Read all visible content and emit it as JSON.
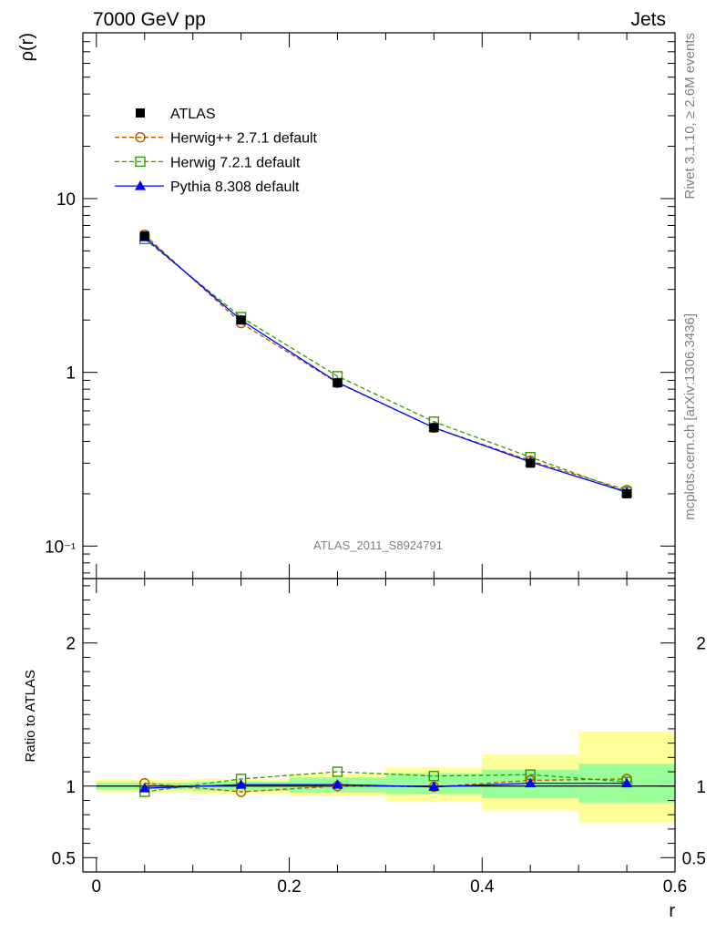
{
  "header": {
    "left_title": "7000 GeV pp",
    "right_title": "Jets"
  },
  "side_labels": {
    "rivet": "Rivet 3.1.10, ≥ 2.6M events",
    "mcplots": "mcplots.cern.ch [arXiv:1306.3436]"
  },
  "watermark": "ATLAS_2011_S8924791",
  "colors": {
    "atlas": "#000000",
    "herwigpp": "#b35900",
    "herwig7": "#339900",
    "pythia": "#0000ff",
    "band_inner": "#99ff99",
    "band_outer": "#ffff99"
  },
  "legend": [
    {
      "label": "ATLAS",
      "key": "atlas",
      "marker": "square-filled",
      "line": "none"
    },
    {
      "label": "Herwig++ 2.7.1 default",
      "key": "herwigpp",
      "marker": "circle-open",
      "line": "dashed"
    },
    {
      "label": "Herwig 7.2.1 default",
      "key": "herwig7",
      "marker": "square-open",
      "line": "dashed"
    },
    {
      "label": "Pythia 8.308 default",
      "key": "pythia",
      "marker": "triangle-filled",
      "line": "solid"
    }
  ],
  "chart_data": [
    {
      "type": "line",
      "panel": "main",
      "ylabel": "ρ(r)",
      "yscale": "log",
      "ylim": [
        0.065,
        90
      ],
      "xlim": [
        -0.014,
        0.6
      ],
      "y_ticklabels": [
        {
          "value": 10,
          "text": "10"
        },
        {
          "value": 1,
          "text": "1"
        },
        {
          "value": 0.1,
          "text": "10⁻¹"
        }
      ],
      "x": [
        0.05,
        0.15,
        0.25,
        0.35,
        0.45,
        0.55
      ],
      "series": [
        {
          "name": "ATLAS",
          "key": "atlas",
          "values": [
            6.1,
            2.0,
            0.87,
            0.48,
            0.3,
            0.2
          ]
        },
        {
          "name": "Herwig++ 2.7.1 default",
          "key": "herwigpp",
          "values": [
            6.2,
            1.92,
            0.87,
            0.48,
            0.31,
            0.21
          ]
        },
        {
          "name": "Herwig 7.2.1 default",
          "key": "herwig7",
          "values": [
            5.85,
            2.08,
            0.95,
            0.52,
            0.325,
            0.205
          ]
        },
        {
          "name": "Pythia 8.308 default",
          "key": "pythia",
          "values": [
            6.0,
            2.0,
            0.875,
            0.48,
            0.305,
            0.204
          ]
        }
      ]
    },
    {
      "type": "line",
      "panel": "ratio",
      "xlabel": "r",
      "ylabel": "Ratio to ATLAS",
      "ylim": [
        0.4,
        2.45
      ],
      "xlim": [
        -0.014,
        0.6
      ],
      "x_ticklabels": [
        {
          "value": 0,
          "text": "0"
        },
        {
          "value": 0.2,
          "text": "0.2"
        },
        {
          "value": 0.4,
          "text": "0.4"
        },
        {
          "value": 0.6,
          "text": "0.6"
        }
      ],
      "y_ticklabels": [
        {
          "value": 2,
          "text": "2"
        },
        {
          "value": 1,
          "text": "1"
        },
        {
          "value": 0.5,
          "text": "0.5"
        }
      ],
      "bins": [
        [
          0.0,
          0.1
        ],
        [
          0.1,
          0.2
        ],
        [
          0.2,
          0.3
        ],
        [
          0.3,
          0.4
        ],
        [
          0.4,
          0.5
        ],
        [
          0.5,
          0.6
        ]
      ],
      "band_inner": [
        [
          0.975,
          1.025
        ],
        [
          0.965,
          1.03
        ],
        [
          0.955,
          1.06
        ],
        [
          0.945,
          1.09
        ],
        [
          0.915,
          1.115
        ],
        [
          0.885,
          1.155
        ]
      ],
      "band_outer": [
        [
          0.955,
          1.045
        ],
        [
          0.945,
          1.05
        ],
        [
          0.93,
          1.085
        ],
        [
          0.89,
          1.13
        ],
        [
          0.83,
          1.22
        ],
        [
          0.745,
          1.38
        ]
      ],
      "x": [
        0.05,
        0.15,
        0.25,
        0.35,
        0.45,
        0.55
      ],
      "series": [
        {
          "name": "Herwig++ 2.7.1 default",
          "key": "herwigpp",
          "values": [
            1.02,
            0.96,
            1.0,
            0.995,
            1.04,
            1.05
          ]
        },
        {
          "name": "Herwig 7.2.1 default",
          "key": "herwig7",
          "values": [
            0.96,
            1.05,
            1.1,
            1.07,
            1.08,
            1.03
          ]
        },
        {
          "name": "Pythia 8.308 default",
          "key": "pythia",
          "values": [
            0.985,
            1.01,
            1.01,
            0.995,
            1.02,
            1.02
          ]
        }
      ]
    }
  ]
}
